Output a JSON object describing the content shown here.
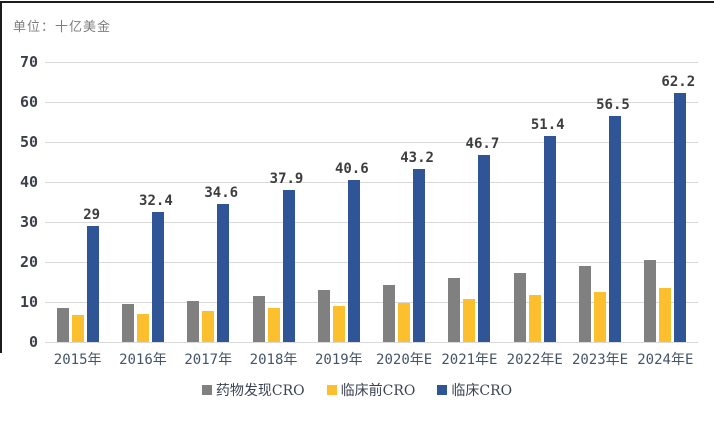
{
  "unit_label": "单位：十亿美金",
  "chart_data": {
    "type": "bar",
    "title": "",
    "unit_note": "单位：十亿美金",
    "categories": [
      "2015年",
      "2016年",
      "2017年",
      "2018年",
      "2019年",
      "2020年E",
      "2021年E",
      "2022年E",
      "2023年E",
      "2024年E"
    ],
    "series": [
      {
        "name": "药物发现CRO",
        "color": "#808080",
        "values": [
          8.5,
          9.5,
          10.3,
          11.4,
          13.0,
          14.2,
          16.0,
          17.2,
          18.9,
          20.4
        ],
        "show_labels": false,
        "labels": []
      },
      {
        "name": "临床前CRO",
        "color": "#FCBF2D",
        "values": [
          6.8,
          7.1,
          7.8,
          8.5,
          9.1,
          9.8,
          10.8,
          11.7,
          12.5,
          13.6
        ],
        "show_labels": false,
        "labels": []
      },
      {
        "name": "临床CRO",
        "color": "#2F5597",
        "values": [
          29,
          32.4,
          34.6,
          37.9,
          40.6,
          43.2,
          46.7,
          51.4,
          56.5,
          62.2
        ],
        "show_labels": true,
        "labels": [
          "29",
          "32.4",
          "34.6",
          "37.9",
          "40.6",
          "43.2",
          "46.7",
          "51.4",
          "56.5",
          "62.2"
        ]
      }
    ],
    "y_axis": {
      "min": 0,
      "max": 70,
      "step": 10,
      "ticks": [
        "0",
        "10",
        "20",
        "30",
        "40",
        "50",
        "60",
        "70"
      ]
    },
    "grid": true,
    "legend_position": "bottom",
    "colors": {
      "gridline": "#d9d9d9",
      "axis_text": "#3a3f4a",
      "xaxis_text": "#44546a",
      "data_label": "#3d3d3d",
      "border": "#1c1c1c"
    }
  }
}
